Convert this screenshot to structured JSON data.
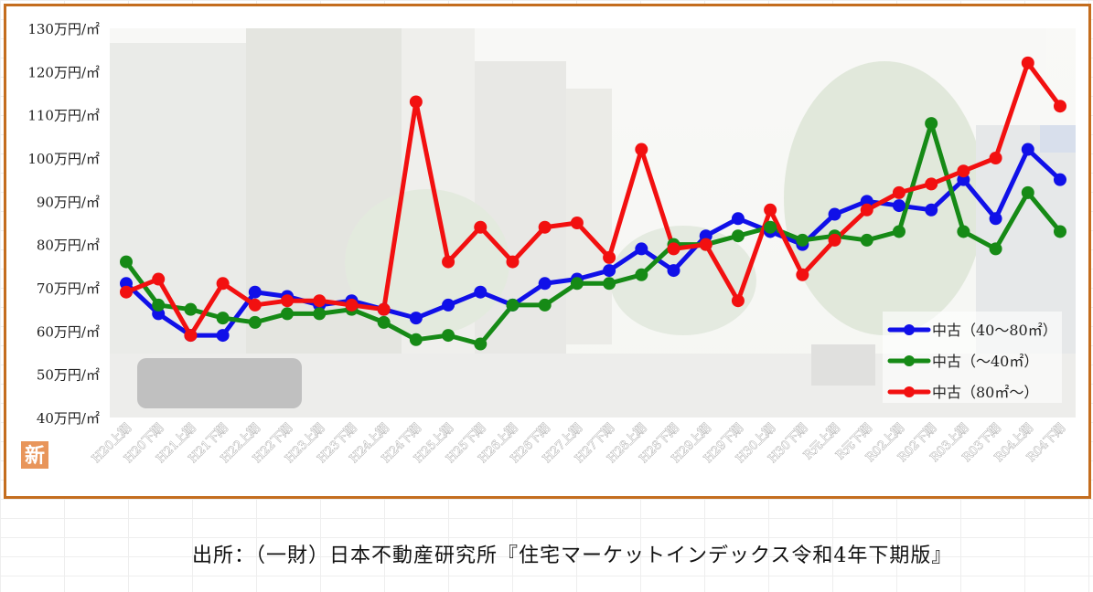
{
  "chart_data": {
    "type": "line",
    "categories": [
      "H20上期",
      "H20下期",
      "H21上期",
      "H21下期",
      "H22上期",
      "H22下期",
      "H23上期",
      "H23下期",
      "H24上期",
      "H24下期",
      "H25上期",
      "H25下期",
      "H26上期",
      "H26下期",
      "H27上期",
      "H27下期",
      "H28上期",
      "H28下期",
      "H29上期",
      "H29下期",
      "H30上期",
      "H30下期",
      "R元上期",
      "R元下期",
      "R02上期",
      "R02下期",
      "R03上期",
      "R03下期",
      "R04上期",
      "R04下期"
    ],
    "ytick_labels": [
      "40万円/㎡",
      "50万円/㎡",
      "60万円/㎡",
      "70万円/㎡",
      "80万円/㎡",
      "90万円/㎡",
      "100万円/㎡",
      "110万円/㎡",
      "120万円/㎡",
      "130万円/㎡"
    ],
    "ylim": [
      40,
      130
    ],
    "grid": false,
    "legend_position": "bottom-right",
    "series": [
      {
        "name": "中古（40～80㎡）",
        "color": "#1010e8",
        "values": [
          71,
          64,
          59,
          59,
          69,
          68,
          66,
          67,
          65,
          63,
          66,
          69,
          66,
          71,
          72,
          74,
          79,
          74,
          82,
          86,
          83,
          80,
          87,
          90,
          89,
          88,
          95,
          86,
          102,
          95
        ]
      },
      {
        "name": "中古（～40㎡）",
        "color": "#168a16",
        "values": [
          76,
          66,
          65,
          63,
          62,
          64,
          64,
          65,
          62,
          58,
          59,
          57,
          66,
          66,
          71,
          71,
          73,
          80,
          80,
          82,
          84,
          81,
          82,
          81,
          83,
          108,
          83,
          79,
          92,
          83
        ]
      },
      {
        "name": "中古（80㎡～）",
        "color": "#f21010",
        "values": [
          69,
          72,
          59,
          71,
          66,
          67,
          67,
          66,
          65,
          113,
          76,
          84,
          76,
          84,
          85,
          77,
          102,
          79,
          80,
          67,
          88,
          73,
          81,
          88,
          92,
          94,
          97,
          100,
          122,
          112
        ]
      }
    ]
  },
  "badge_text": "新",
  "source_text": "出所：（一財）日本不動産研究所『住宅マーケットインデックス令和4年下期版』"
}
